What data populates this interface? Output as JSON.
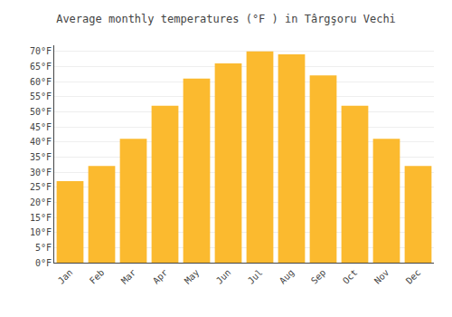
{
  "chart_data": {
    "type": "bar",
    "title": "Average monthly temperatures (°F ) in Târgşoru Vechi",
    "categories": [
      "Jan",
      "Feb",
      "Mar",
      "Apr",
      "May",
      "Jun",
      "Jul",
      "Aug",
      "Sep",
      "Oct",
      "Nov",
      "Dec"
    ],
    "values": [
      27,
      32,
      41,
      52,
      61,
      66,
      70,
      69,
      62,
      52,
      41,
      32
    ],
    "color": "#FBBA2F",
    "ylim": [
      0,
      72
    ],
    "yticks": [
      {
        "value": 0,
        "label": "0°F"
      },
      {
        "value": 5,
        "label": "5°F"
      },
      {
        "value": 10,
        "label": "10°F"
      },
      {
        "value": 15,
        "label": "15°F"
      },
      {
        "value": 20,
        "label": "20°F"
      },
      {
        "value": 25,
        "label": "25°F"
      },
      {
        "value": 30,
        "label": "30°F"
      },
      {
        "value": 35,
        "label": "35°F"
      },
      {
        "value": 40,
        "label": "40°F"
      },
      {
        "value": 45,
        "label": "45°F"
      },
      {
        "value": 50,
        "label": "50°F"
      },
      {
        "value": 55,
        "label": "55°F"
      },
      {
        "value": 60,
        "label": "60°F"
      },
      {
        "value": 65,
        "label": "65°F"
      },
      {
        "value": 70,
        "label": "70°F"
      }
    ],
    "grid": true
  }
}
